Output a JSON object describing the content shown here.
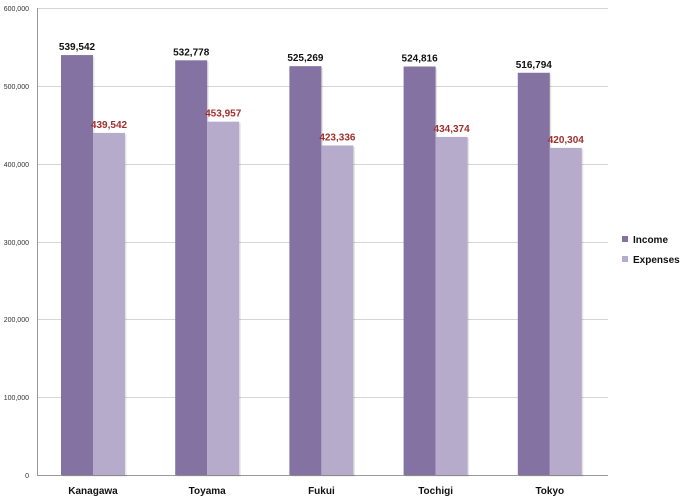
{
  "chart_data": {
    "type": "bar",
    "categories": [
      "Kanagawa",
      "Toyama",
      "Fukui",
      "Tochigi",
      "Tokyo"
    ],
    "series": [
      {
        "name": "Income",
        "values": [
          539542,
          532778,
          525269,
          524816,
          516794
        ],
        "color": "#8472a3",
        "label_color": "#111111"
      },
      {
        "name": "Expenses",
        "values": [
          439542,
          453957,
          423336,
          434374,
          420304
        ],
        "color": "#b6abca",
        "label_color": "#a0302e"
      }
    ],
    "ylim": [
      0,
      600000
    ],
    "yticks": [
      0,
      100000,
      200000,
      300000,
      400000,
      500000,
      600000
    ],
    "ytick_labels": [
      "0",
      "100,000",
      "200,000",
      "300,000",
      "400,000",
      "500,000",
      "600,000"
    ],
    "data_labels": [
      [
        "539,542",
        "532,778",
        "525,269",
        "524,816",
        "516,794"
      ],
      [
        "439,542",
        "453,957",
        "423,336",
        "434,374",
        "420,304"
      ]
    ],
    "grid": true,
    "legend_position": "right",
    "title": "",
    "xlabel": "",
    "ylabel": ""
  }
}
